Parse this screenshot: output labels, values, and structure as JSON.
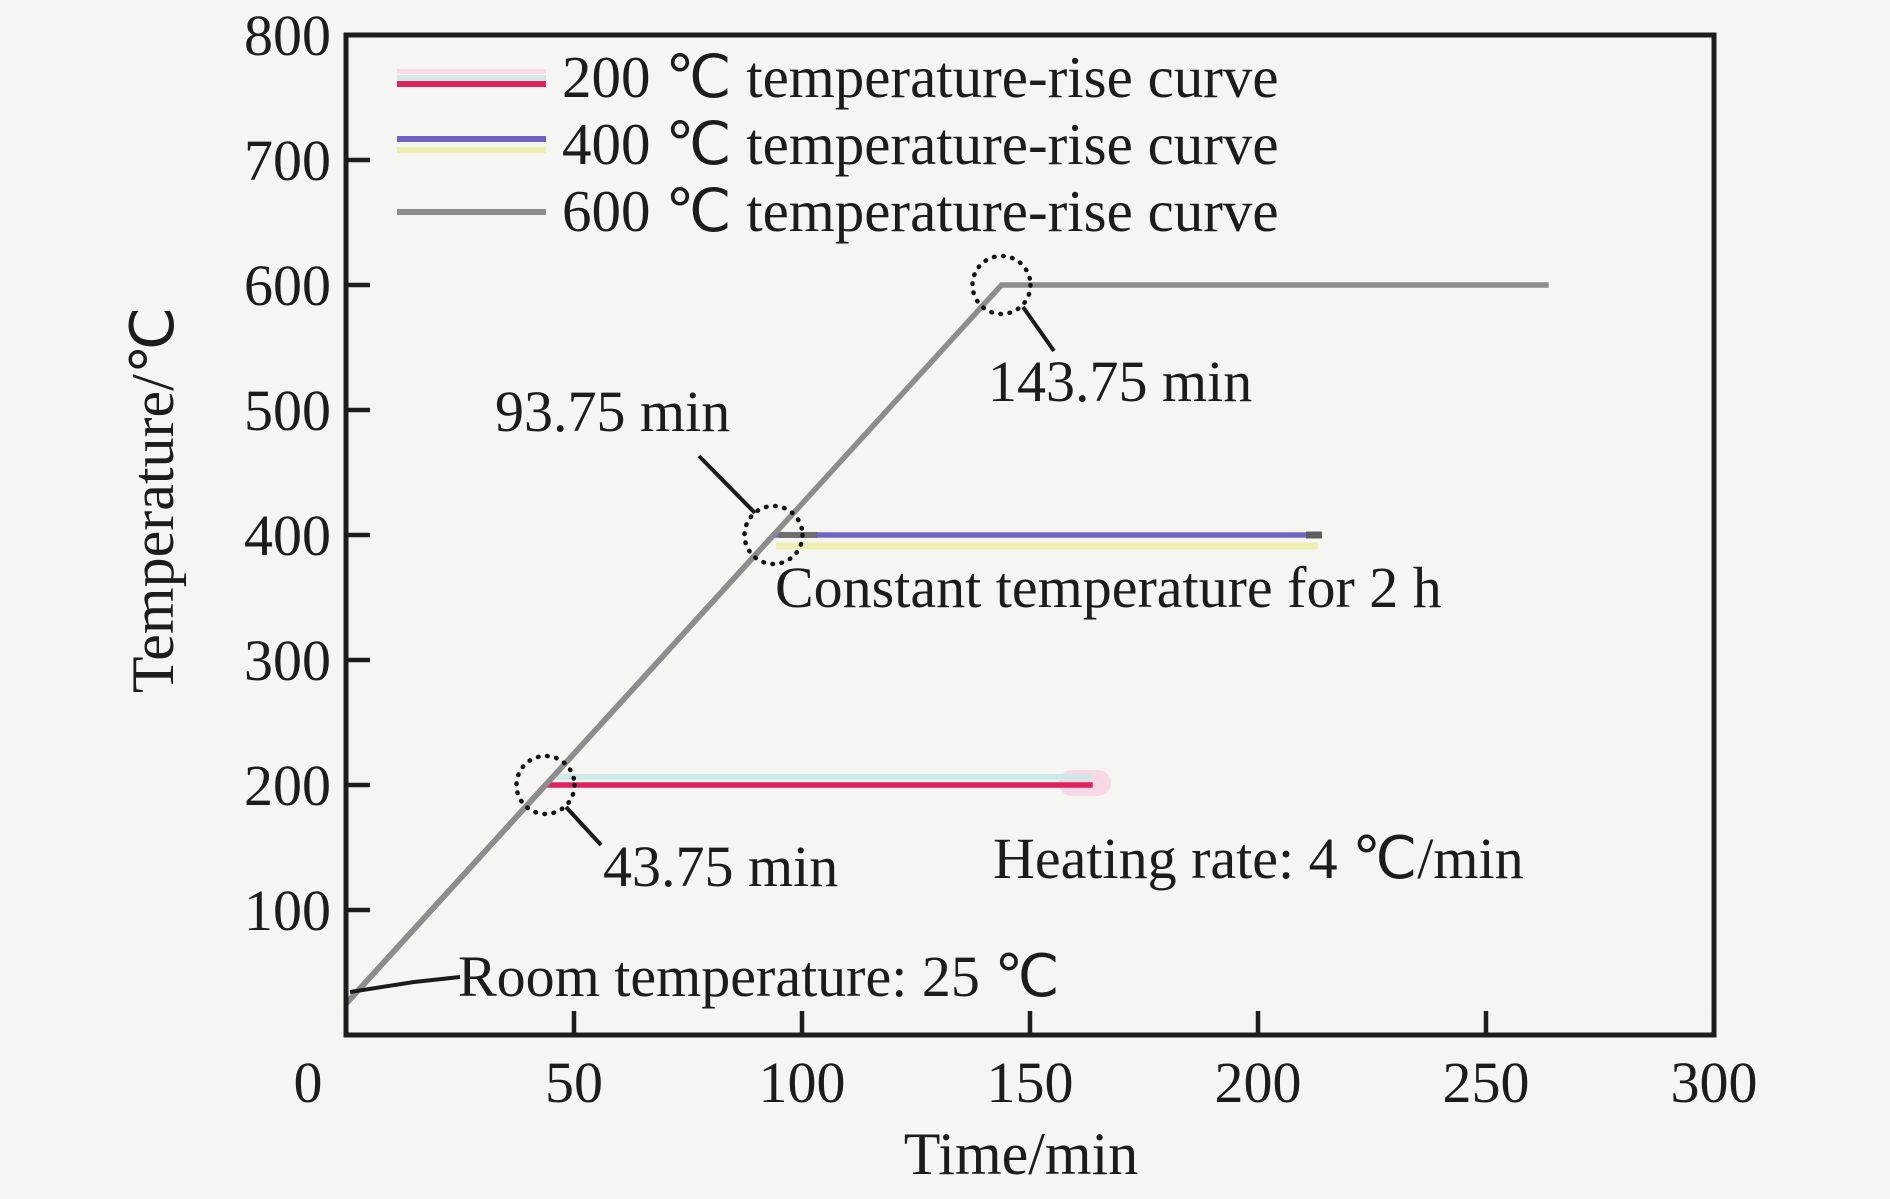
{
  "colors": {
    "background": "#f5f5f3",
    "frame": "#1d1d1d",
    "text": "#1c1c1c",
    "annotation_line": "#1b1b1b",
    "accent_crimson": "#e0215e",
    "accent_purple": "#6f64c2",
    "accent_gray": "#8d8d8d",
    "halo_pink": "#f9d9e6",
    "halo_mint": "#cfeae4",
    "halo_yellow": "#eef0b2",
    "cap_dark_1": "#6f6f6f",
    "cap_dark_2": "#5d5d5d"
  },
  "legend": {
    "entries": [
      {
        "label": "200 ℃ temperature-rise curve",
        "swatch_colors": [
          "#f9d9e6",
          "#cfeae4",
          "#e0215e"
        ]
      },
      {
        "label": "400 ℃ temperature-rise curve",
        "swatch_colors": [
          "#6f64c2",
          "#eef0b2"
        ]
      },
      {
        "label": "600 ℃ temperature-rise curve",
        "swatch_colors": [
          "#8d8d8d"
        ]
      }
    ]
  },
  "annotations": {
    "t200": "43.75 min",
    "t400": "93.75 min",
    "t600": "143.75 min",
    "room": "Room temperature: 25 ℃",
    "hold": "Constant temperature for 2 h",
    "rate": "Heating rate: 4 ℃/min"
  },
  "chart_data": {
    "type": "line",
    "title": "",
    "xlabel": "Time/min",
    "ylabel": "Temperature/℃",
    "xlim": [
      0,
      300
    ],
    "ylim": [
      0,
      800
    ],
    "x_ticks": [
      0,
      50,
      100,
      150,
      200,
      250,
      300
    ],
    "y_ticks": [
      100,
      200,
      300,
      400,
      500,
      600,
      700,
      800
    ],
    "grid": false,
    "legend_position": "upper-left",
    "heating_rate_c_per_min": 4,
    "room_temperature_c": 25,
    "hold_duration_min": 120,
    "series": [
      {
        "name": "200 ℃ temperature-rise curve",
        "color": "#e0215e",
        "points": [
          [
            0,
            25
          ],
          [
            43.75,
            200
          ],
          [
            163.75,
            200
          ]
        ]
      },
      {
        "name": "400 ℃ temperature-rise curve",
        "color": "#6f64c2",
        "points": [
          [
            0,
            25
          ],
          [
            93.75,
            400
          ],
          [
            213.75,
            400
          ]
        ]
      },
      {
        "name": "600 ℃ temperature-rise curve",
        "color": "#8d8d8d",
        "points": [
          [
            0,
            25
          ],
          [
            143.75,
            600
          ],
          [
            263.75,
            600
          ]
        ]
      }
    ],
    "marked_points": [
      {
        "x": 43.75,
        "y": 200,
        "label": "43.75 min"
      },
      {
        "x": 93.75,
        "y": 400,
        "label": "93.75 min"
      },
      {
        "x": 143.75,
        "y": 600,
        "label": "143.75 min"
      }
    ]
  }
}
